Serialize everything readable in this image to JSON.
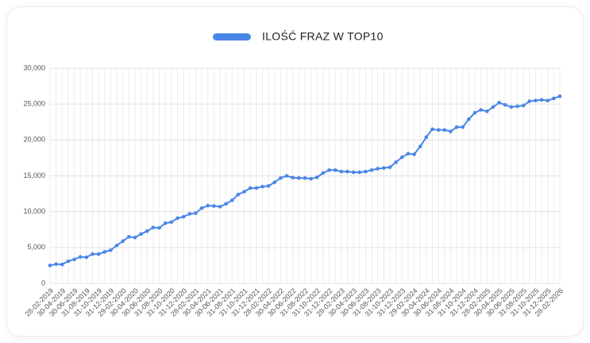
{
  "chart_data": {
    "type": "line",
    "categories": [
      "28-02-2019",
      null,
      "30-04-2019",
      null,
      "30-06-2019",
      null,
      "31-08-2019",
      null,
      "31-10-2019",
      null,
      "31-12-2019",
      null,
      "29-02-2020",
      null,
      "30-04-2020",
      null,
      "30-06-2020",
      null,
      "31-08-2020",
      null,
      "31-10-2020",
      null,
      "31-12-2020",
      null,
      "28-02-2021",
      null,
      "30-04-2021",
      null,
      "30-06-2021",
      null,
      "31-08-2021",
      null,
      "31-10-2021",
      null,
      "31-12-2021",
      null,
      "28-02-2022",
      null,
      "30-04-2022",
      null,
      "30-06-2022",
      null,
      "31-08-2022",
      null,
      "31-10-2022",
      null,
      "31-12-2022",
      null,
      "28-02-2023",
      null,
      "30-04-2023",
      null,
      "30-06-2023",
      null,
      "31-08-2023",
      null,
      "31-10-2023",
      null,
      "31-12-2023",
      null,
      "29-02-2024",
      null,
      "30-04-2024",
      null,
      "30-06-2024",
      null,
      "31-08-2024",
      null,
      "31-10-2024",
      null,
      "31-12-2024",
      null,
      "28-02-2025",
      null,
      "30-04-2025",
      null,
      "30-06-2025",
      null,
      "31-08-2025",
      null,
      "31-10-2025",
      null,
      "31-12-2025",
      null,
      "28-02-2026"
    ],
    "series": [
      {
        "name": "ILOŚĆ FRAZ W TOP10",
        "color": "#4a86e8",
        "values": [
          2500,
          2700,
          2650,
          3100,
          3350,
          3700,
          3650,
          4100,
          4100,
          4400,
          4650,
          5300,
          5900,
          6500,
          6400,
          6900,
          7300,
          7800,
          7750,
          8400,
          8550,
          9100,
          9300,
          9700,
          9800,
          10500,
          10850,
          10800,
          10700,
          11100,
          11600,
          12400,
          12800,
          13300,
          13300,
          13500,
          13600,
          14100,
          14700,
          15000,
          14750,
          14700,
          14700,
          14600,
          14800,
          15400,
          15800,
          15800,
          15600,
          15600,
          15500,
          15500,
          15600,
          15800,
          16000,
          16100,
          16200,
          16900,
          17600,
          18100,
          18000,
          19100,
          20400,
          21500,
          21400,
          21400,
          21200,
          21800,
          21800,
          22900,
          23800,
          24200,
          24000,
          24600,
          25200,
          24900,
          24600,
          24700,
          24800,
          25400,
          25500,
          25600,
          25500,
          25800,
          26100
        ]
      }
    ],
    "ylim": [
      0,
      30000
    ],
    "yticks": [
      0,
      {
        "value": 5000,
        "label": "5,000"
      },
      {
        "value": 10000,
        "label": "10,000"
      },
      {
        "value": 15000,
        "label": "15,000"
      },
      {
        "value": 20000,
        "label": "20,000"
      },
      {
        "value": 25000,
        "label": "25,000"
      },
      {
        "value": 30000,
        "label": "30,000"
      }
    ],
    "grid": true,
    "legend": "top"
  }
}
